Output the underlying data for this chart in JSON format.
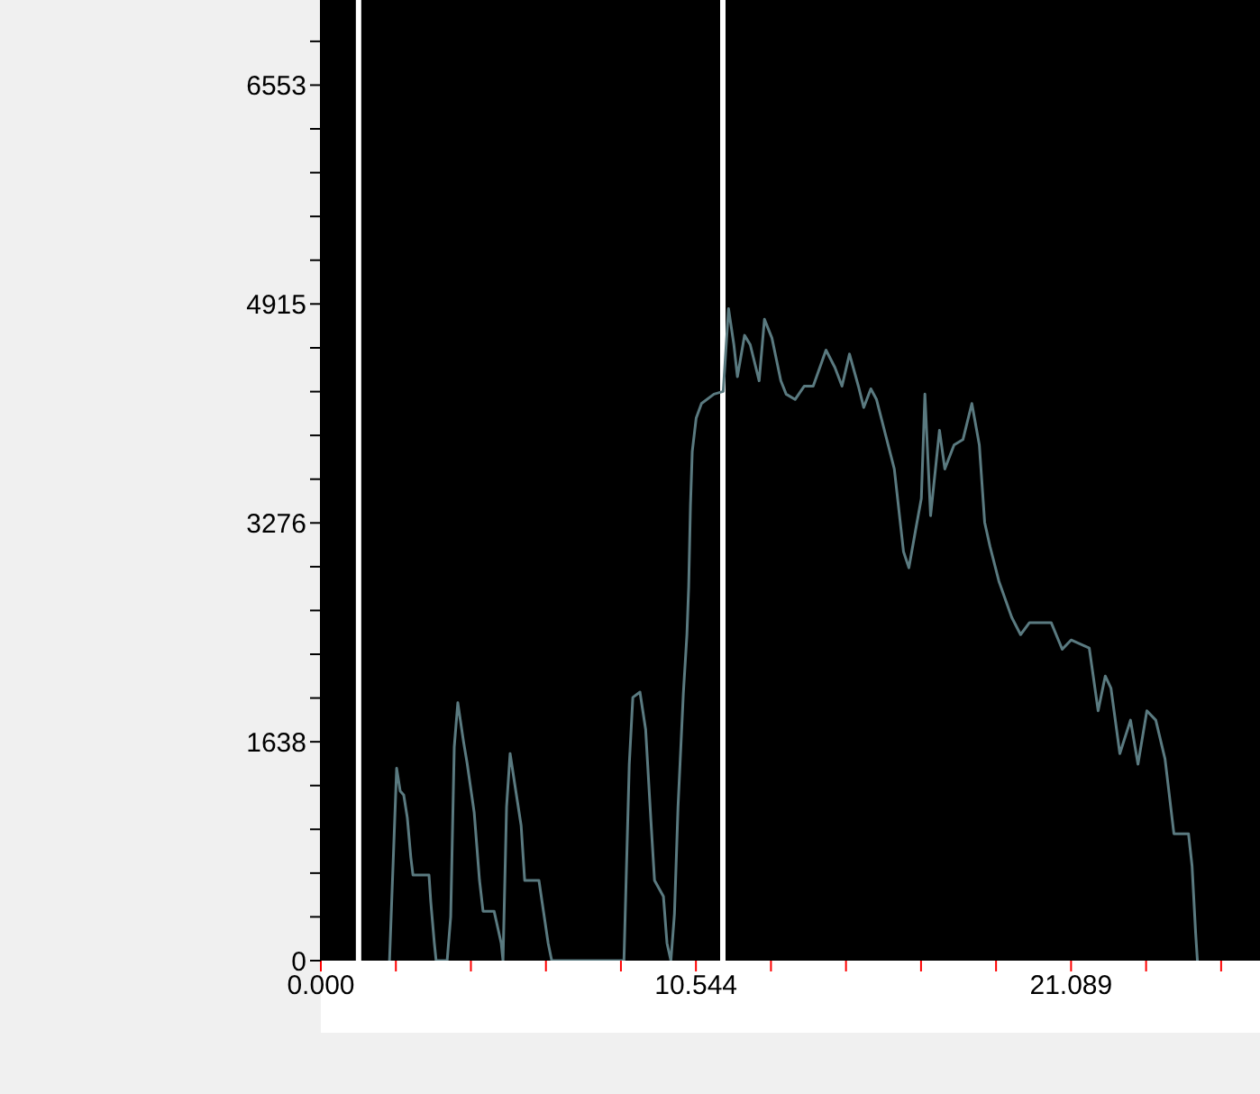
{
  "chart_data": {
    "type": "line",
    "x": [
      1.93,
      2.13,
      2.23,
      2.33,
      2.43,
      2.53,
      2.59,
      3.04,
      3.09,
      3.19,
      3.24,
      3.55,
      3.65,
      3.75,
      3.85,
      4.01,
      4.11,
      4.31,
      4.46,
      4.56,
      4.87,
      5.07,
      5.12,
      5.22,
      5.32,
      5.48,
      5.63,
      5.73,
      6.13,
      6.39,
      6.49,
      8.52,
      8.67,
      8.77,
      8.97,
      9.13,
      9.28,
      9.38,
      9.63,
      9.73,
      9.84,
      9.94,
      10.04,
      10.19,
      10.29,
      10.34,
      10.39,
      10.44,
      10.55,
      10.7,
      11.05,
      11.31,
      11.46,
      11.61,
      11.71,
      11.91,
      12.07,
      12.32,
      12.47,
      12.68,
      12.93,
      13.08,
      13.33,
      13.59,
      13.84,
      14.2,
      14.45,
      14.65,
      14.86,
      15.11,
      15.26,
      15.46,
      15.62,
      15.87,
      16.12,
      16.38,
      16.53,
      16.73,
      16.88,
      16.98,
      17.14,
      17.39,
      17.54,
      17.8,
      18.05,
      18.3,
      18.51,
      18.66,
      18.81,
      19.06,
      19.42,
      19.67,
      19.92,
      20.53,
      20.84,
      21.09,
      21.6,
      21.85,
      22.05,
      22.21,
      22.46,
      22.76,
      22.97,
      23.22,
      23.47,
      23.73,
      23.98,
      24.39,
      24.49,
      24.59,
      24.64
    ],
    "series": [
      {
        "color": "#5a7a80",
        "values": [
          0,
          1440,
          1270,
          1240,
          1070,
          770,
          640,
          640,
          440,
          130,
          0,
          0,
          330,
          1600,
          1930,
          1640,
          1480,
          1110,
          600,
          370,
          370,
          130,
          0,
          1150,
          1550,
          1270,
          1010,
          600,
          600,
          130,
          0,
          0,
          1470,
          1970,
          2010,
          1730,
          1040,
          600,
          480,
          130,
          0,
          350,
          1150,
          2000,
          2440,
          2800,
          3410,
          3810,
          4060,
          4170,
          4240,
          4260,
          4880,
          4610,
          4370,
          4680,
          4610,
          4340,
          4800,
          4660,
          4340,
          4240,
          4200,
          4300,
          4300,
          4570,
          4440,
          4300,
          4540,
          4300,
          4140,
          4280,
          4200,
          3940,
          3680,
          3060,
          2940,
          3240,
          3460,
          4240,
          3330,
          3970,
          3680,
          3860,
          3900,
          4170,
          3860,
          3280,
          3100,
          2840,
          2570,
          2440,
          2530,
          2530,
          2330,
          2400,
          2340,
          1870,
          2130,
          2040,
          1550,
          1800,
          1470,
          1870,
          1800,
          1510,
          950,
          950,
          710,
          210,
          0
        ]
      }
    ],
    "xlim": [
      0,
      26.4
    ],
    "ylim": [
      0,
      7190
    ],
    "xticks": [
      {
        "value": 0,
        "label": "0.000"
      },
      {
        "value": 2.109,
        "label": null
      },
      {
        "value": 4.218,
        "label": null
      },
      {
        "value": 6.327,
        "label": null
      },
      {
        "value": 8.435,
        "label": null
      },
      10.544,
      {
        "value": 12.653,
        "label": null
      },
      {
        "value": 14.762,
        "label": null
      },
      {
        "value": 16.871,
        "label": null
      },
      {
        "value": 18.98,
        "label": null
      },
      21.089,
      {
        "value": 23.198,
        "label": null
      },
      {
        "value": 25.307,
        "label": null
      }
    ],
    "yticks": [
      0,
      {
        "value": 327.6,
        "label": null
      },
      {
        "value": 655.2,
        "label": null
      },
      {
        "value": 982.8,
        "label": null
      },
      {
        "value": 1310.4,
        "label": null
      },
      1638,
      {
        "value": 1965.6,
        "label": null
      },
      {
        "value": 2293.2,
        "label": null
      },
      {
        "value": 2620.8,
        "label": null
      },
      {
        "value": 2948.4,
        "label": null
      },
      3276,
      {
        "value": 3603.6,
        "label": null
      },
      {
        "value": 3931.2,
        "label": null
      },
      {
        "value": 4258.8,
        "label": null
      },
      {
        "value": 4586.4,
        "label": null
      },
      4915,
      {
        "value": 5242.6,
        "label": null
      },
      {
        "value": 5570.2,
        "label": null
      },
      {
        "value": 5897.8,
        "label": null
      },
      {
        "value": 6225.4,
        "label": null
      },
      6553,
      {
        "value": 6880.6,
        "label": null
      }
    ],
    "ref_lines": [
      {
        "axis": "x",
        "value": 1.06,
        "color": "#ffffff"
      },
      {
        "axis": "x",
        "value": 11.3,
        "color": "#ffffff"
      }
    ]
  }
}
